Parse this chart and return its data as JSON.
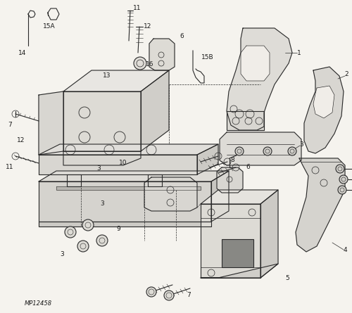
{
  "diagram_id": "MP12458",
  "background_color": "#f5f3ee",
  "line_color": "#2a2a2a",
  "fill_color": "#e8e6e0",
  "label_color": "#1a1a1a",
  "font_size_labels": 6.5,
  "font_size_id": 6,
  "figsize": [
    5.0,
    4.45
  ],
  "dpi": 100
}
